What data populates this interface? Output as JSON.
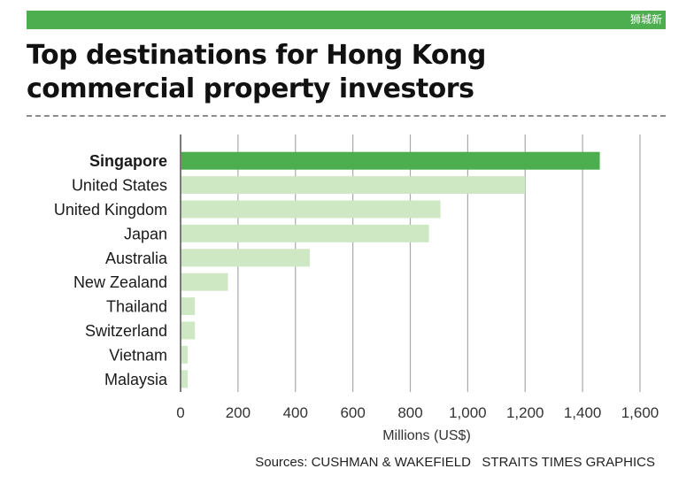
{
  "header": {
    "watermark": "狮城新"
  },
  "title_line1": "Top destinations for Hong Kong",
  "title_line2": "commercial property investors",
  "source": "Sources: CUSHMAN & WAKEFIELD   STRAITS TIMES GRAPHICS",
  "colors": {
    "highlight": "#4cae4f",
    "bar": "#cfe8c4",
    "grid": "#a9a9a9",
    "axis": "#7a7a7a",
    "text": "#1a1a1a"
  },
  "chart_data": {
    "type": "bar",
    "orientation": "horizontal",
    "categories": [
      "Singapore",
      "United States",
      "United Kingdom",
      "Japan",
      "Australia",
      "New Zealand",
      "Thailand",
      "Switzerland",
      "Vietnam",
      "Malaysia"
    ],
    "values": [
      1460,
      1200,
      905,
      865,
      450,
      165,
      50,
      50,
      25,
      25
    ],
    "highlight_index": 0,
    "xlabel": "Millions (US$)",
    "xlim": [
      0,
      1600
    ],
    "xticks": [
      0,
      200,
      400,
      600,
      800,
      1000,
      1200,
      1400,
      1600
    ],
    "xtick_labels": [
      "0",
      "200",
      "400",
      "600",
      "800",
      "1,000",
      "1,200",
      "1,400",
      "1,600"
    ],
    "grid": true
  }
}
